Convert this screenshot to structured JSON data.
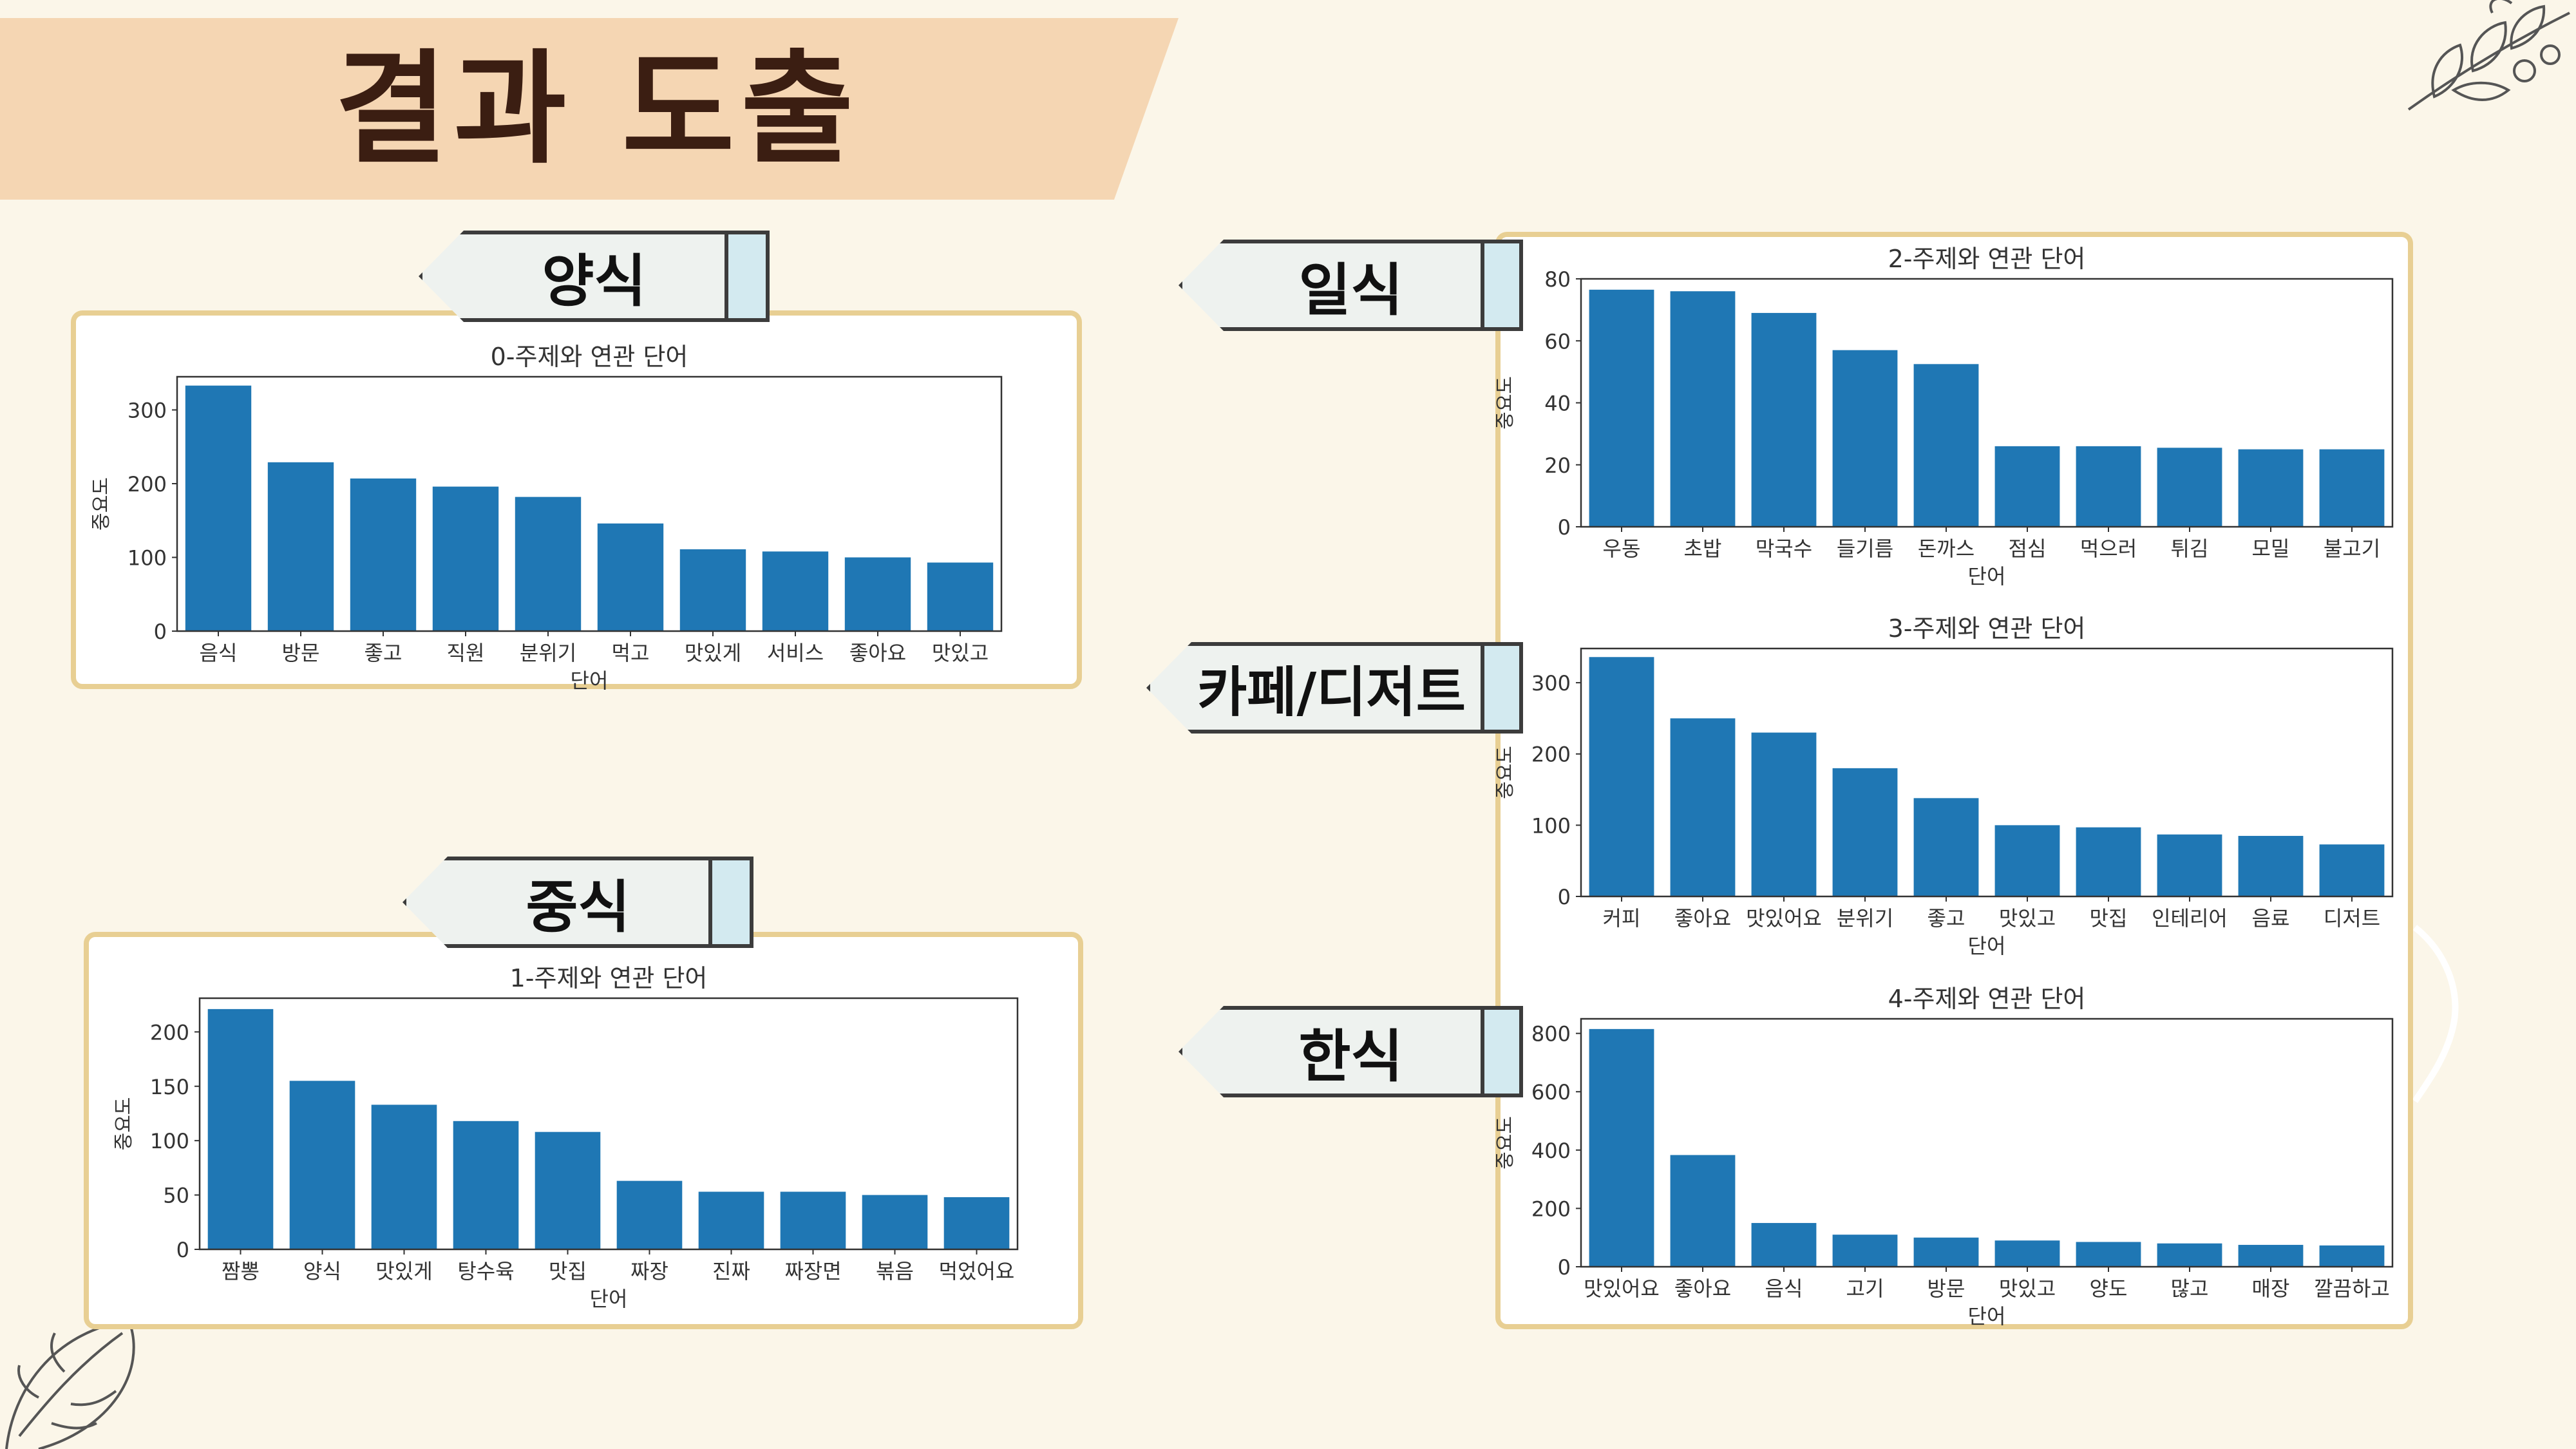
{
  "slide": {
    "title": "결과 도출"
  },
  "tags": {
    "western": "양식",
    "chinese": "중식",
    "japanese": "일식",
    "cafe": "카페/디저트",
    "korean": "한식"
  },
  "colors": {
    "bar": "#1f77b4",
    "banner": "#f5d6b3",
    "panel_border": "#e8cf93",
    "background": "#fbf6e9"
  },
  "chart_data": [
    {
      "type": "bar",
      "title": "0-주제와 연관 단어",
      "xlabel": "단어",
      "ylabel": "중요도",
      "categories": [
        "음식",
        "방문",
        "좋고",
        "직원",
        "분위기",
        "먹고",
        "맛있게",
        "서비스",
        "좋아요",
        "맛있고"
      ],
      "values": [
        333,
        229,
        207,
        196,
        182,
        146,
        111,
        108,
        100,
        93
      ],
      "ylim": [
        0,
        345
      ],
      "yticks": [
        0,
        100,
        200,
        300
      ]
    },
    {
      "type": "bar",
      "title": "1-주제와 연관 단어",
      "xlabel": "단어",
      "ylabel": "중요도",
      "categories": [
        "짬뽕",
        "양식",
        "맛있게",
        "탕수육",
        "맛집",
        "짜장",
        "진짜",
        "짜장면",
        "볶음",
        "먹었어요"
      ],
      "values": [
        221,
        155,
        133,
        118,
        108,
        63,
        53,
        53,
        50,
        48
      ],
      "ylim": [
        0,
        231
      ],
      "yticks": [
        0,
        50,
        100,
        150,
        200
      ]
    },
    {
      "type": "bar",
      "title": "2-주제와 연관 단어",
      "xlabel": "단어",
      "ylabel": "중요도",
      "categories": [
        "우동",
        "초밥",
        "막국수",
        "들기름",
        "돈까스",
        "점심",
        "먹으러",
        "튀김",
        "모밀",
        "불고기"
      ],
      "values": [
        76.5,
        76,
        69,
        57,
        52.5,
        26,
        26,
        25.5,
        25,
        25
      ],
      "ylim": [
        0,
        80
      ],
      "yticks": [
        0,
        20,
        40,
        60,
        80
      ]
    },
    {
      "type": "bar",
      "title": "3-주제와 연관 단어",
      "xlabel": "단어",
      "ylabel": "중요도",
      "categories": [
        "커피",
        "좋아요",
        "맛있어요",
        "분위기",
        "좋고",
        "맛있고",
        "맛집",
        "인테리어",
        "음료",
        "디저트"
      ],
      "values": [
        336,
        250,
        230,
        180,
        138,
        100,
        97,
        87,
        85,
        73
      ],
      "ylim": [
        0,
        348
      ],
      "yticks": [
        0,
        100,
        200,
        300
      ]
    },
    {
      "type": "bar",
      "title": "4-주제와 연관 단어",
      "xlabel": "단어",
      "ylabel": "중요도",
      "categories": [
        "맛있어요",
        "좋아요",
        "음식",
        "고기",
        "방문",
        "맛있고",
        "양도",
        "많고",
        "매장",
        "깔끔하고"
      ],
      "values": [
        815,
        383,
        150,
        110,
        100,
        90,
        85,
        80,
        75,
        73
      ],
      "ylim": [
        0,
        850
      ],
      "yticks": [
        0,
        200,
        400,
        600,
        800
      ]
    }
  ]
}
